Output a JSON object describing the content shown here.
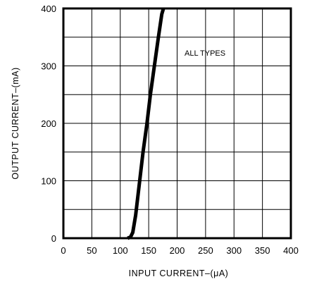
{
  "chart_data": {
    "type": "line",
    "title": "",
    "xlabel": "INPUT CURRENT–(μA)",
    "ylabel": "OUTPUT CURRENT–(mA)",
    "xlim": [
      0,
      400
    ],
    "ylim": [
      0,
      400
    ],
    "xticks": [
      "0",
      "50",
      "100",
      "150",
      "200",
      "250",
      "300",
      "350",
      "400"
    ],
    "yticks": [
      "0",
      "100",
      "200",
      "300",
      "400"
    ],
    "grid": true,
    "annotation": "ALL TYPES",
    "series": [
      {
        "x": [
          113,
          118,
          122,
          127,
          133,
          140,
          147,
          153,
          160,
          167,
          173,
          176
        ],
        "y": [
          0,
          2,
          10,
          40,
          90,
          150,
          200,
          250,
          300,
          350,
          390,
          400
        ]
      }
    ]
  }
}
